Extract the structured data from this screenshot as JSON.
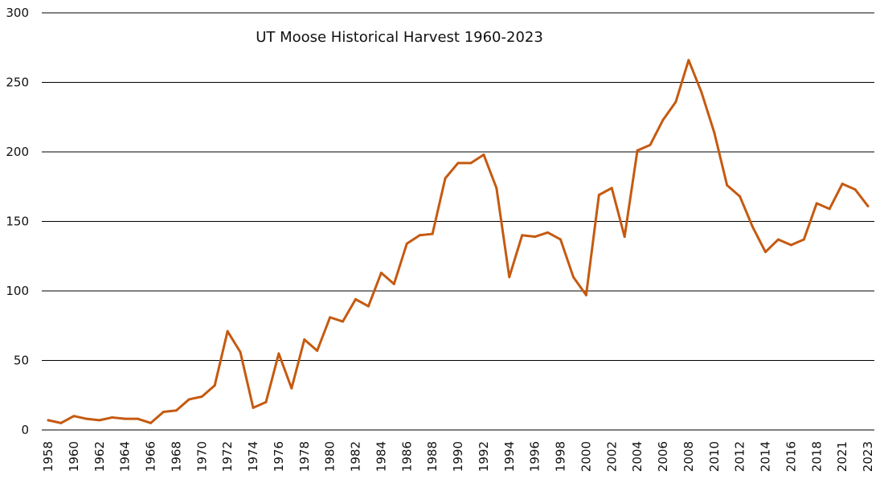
{
  "chart_data": {
    "type": "line",
    "title": "UT Moose Historical Harvest 1960-2023",
    "xlabel": "",
    "ylabel": "",
    "ylim": [
      0,
      300
    ],
    "yticks": [
      0,
      50,
      100,
      150,
      200,
      250,
      300
    ],
    "grid": "horizontal",
    "line_color": "#c55a11",
    "grid_color": "#000000",
    "x_tick_labels": [
      "1958",
      "1960",
      "1962",
      "1964",
      "1966",
      "1968",
      "1970",
      "1972",
      "1974",
      "1976",
      "1978",
      "1980",
      "1982",
      "1984",
      "1986",
      "1988",
      "1990",
      "1992",
      "1994",
      "1996",
      "1998",
      "2000",
      "2002",
      "2004",
      "2006",
      "2008",
      "2010",
      "2012",
      "2014",
      "2016",
      "2018",
      "2021",
      "2023"
    ],
    "x": [
      "1958",
      "1959",
      "1960",
      "1961",
      "1962",
      "1963",
      "1964",
      "1965",
      "1966",
      "1967",
      "1968",
      "1969",
      "1970",
      "1971",
      "1972",
      "1973",
      "1974",
      "1975",
      "1976",
      "1977",
      "1978",
      "1979",
      "1980",
      "1981",
      "1982",
      "1983",
      "1984",
      "1985",
      "1986",
      "1987",
      "1988",
      "1989",
      "1990",
      "1991",
      "1992",
      "1993",
      "1994",
      "1995",
      "1996",
      "1997",
      "1998",
      "1999",
      "2000",
      "2001",
      "2002",
      "2003",
      "2004",
      "2005",
      "2006",
      "2007",
      "2008",
      "2009",
      "2010",
      "2011",
      "2012",
      "2013",
      "2014",
      "2015",
      "2016",
      "2017",
      "2018",
      "2019",
      "2021",
      "2022",
      "2023"
    ],
    "series": [
      {
        "values": [
          7,
          5,
          10,
          8,
          7,
          9,
          8,
          8,
          5,
          13,
          14,
          22,
          24,
          32,
          71,
          56,
          16,
          20,
          55,
          30,
          65,
          57,
          81,
          78,
          94,
          89,
          113,
          105,
          134,
          140,
          141,
          181,
          192,
          192,
          198,
          174,
          110,
          140,
          139,
          142,
          137,
          110,
          97,
          169,
          174,
          139,
          201,
          205,
          223,
          236,
          266,
          243,
          214,
          176,
          168,
          146,
          128,
          137,
          133,
          137,
          163,
          159,
          177,
          173,
          161
        ]
      }
    ]
  }
}
